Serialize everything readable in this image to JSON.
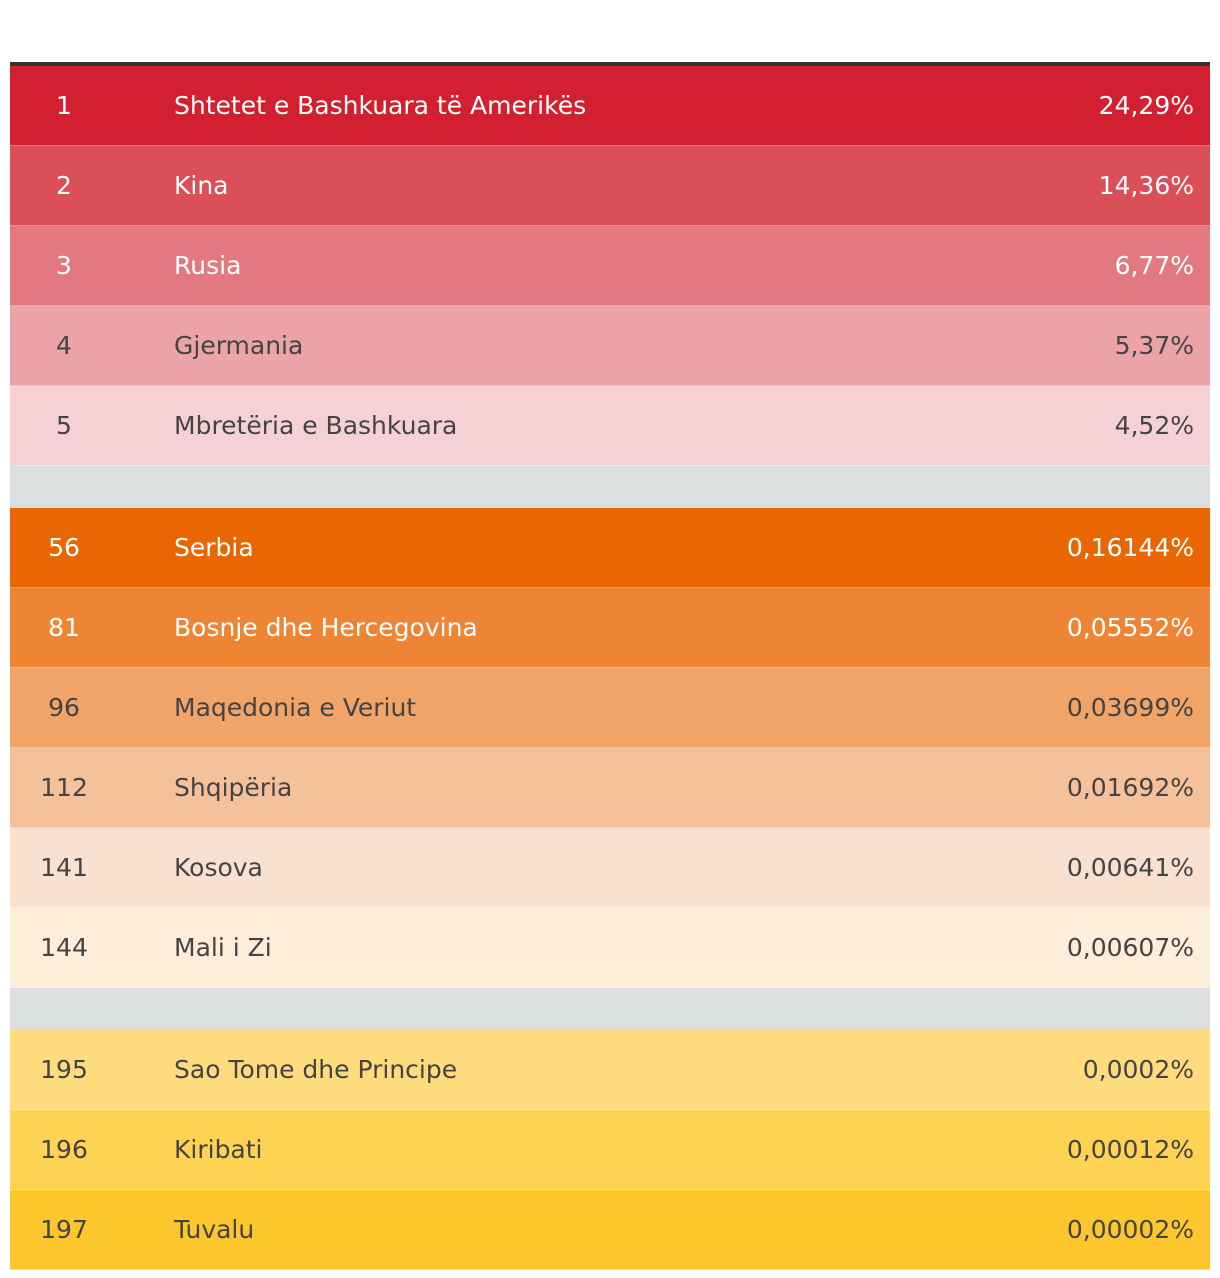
{
  "chart_data": {
    "type": "table",
    "columns": [
      "rank",
      "country",
      "share"
    ],
    "groups": [
      {
        "rows": [
          {
            "rank": "1",
            "country": "Shtetet e Bashkuara të Amerikës",
            "share": "24,29%",
            "value": 24.29,
            "color": "#d22030",
            "text": "light"
          },
          {
            "rank": "2",
            "country": "Kina",
            "share": "14,36%",
            "value": 14.36,
            "color": "#da4f58",
            "text": "light"
          },
          {
            "rank": "3",
            "country": "Rusia",
            "share": "6,77%",
            "value": 6.77,
            "color": "#e27980",
            "text": "light"
          },
          {
            "rank": "4",
            "country": "Gjermania",
            "share": "5,37%",
            "value": 5.37,
            "color": "#eba3a8",
            "text": "dark"
          },
          {
            "rank": "5",
            "country": "Mbretëria e Bashkuara",
            "share": "4,52%",
            "value": 4.52,
            "color": "#f5d1d5",
            "text": "dark"
          }
        ]
      },
      {
        "rows": [
          {
            "rank": "56",
            "country": "Serbia",
            "share": "0,16144%",
            "value": 0.16144,
            "color": "#e96602",
            "text": "light"
          },
          {
            "rank": "81",
            "country": "Bosnje dhe Hercegovina",
            "share": "0,05552%",
            "value": 0.05552,
            "color": "#ee8534",
            "text": "light"
          },
          {
            "rank": "96",
            "country": "Maqedonia e Veriut",
            "share": "0,03699%",
            "value": 0.03699,
            "color": "#f1a467",
            "text": "dark"
          },
          {
            "rank": "112",
            "country": "Shqipëria",
            "share": "0,01692%",
            "value": 0.01692,
            "color": "#f5c19a",
            "text": "dark"
          },
          {
            "rank": "141",
            "country": "Kosova",
            "share": "0,00641%",
            "value": 0.00641,
            "color": "#f9e0d0",
            "text": "dark"
          },
          {
            "rank": "144",
            "country": "Mali i Zi",
            "share": "0,00607%",
            "value": 0.00607,
            "color": "#feeed9",
            "text": "dark"
          }
        ]
      },
      {
        "rows": [
          {
            "rank": "195",
            "country": "Sao Tome dhe Principe",
            "share": "0,0002%",
            "value": 0.0002,
            "color": "#fedc7d",
            "text": "dark"
          },
          {
            "rank": "196",
            "country": "Kiribati",
            "share": "0,00012%",
            "value": 0.00012,
            "color": "#fed253",
            "text": "dark"
          },
          {
            "rank": "197",
            "country": "Tuvalu",
            "share": "0,00002%",
            "value": 2e-05,
            "color": "#fdc62d",
            "text": "dark"
          }
        ]
      }
    ]
  }
}
